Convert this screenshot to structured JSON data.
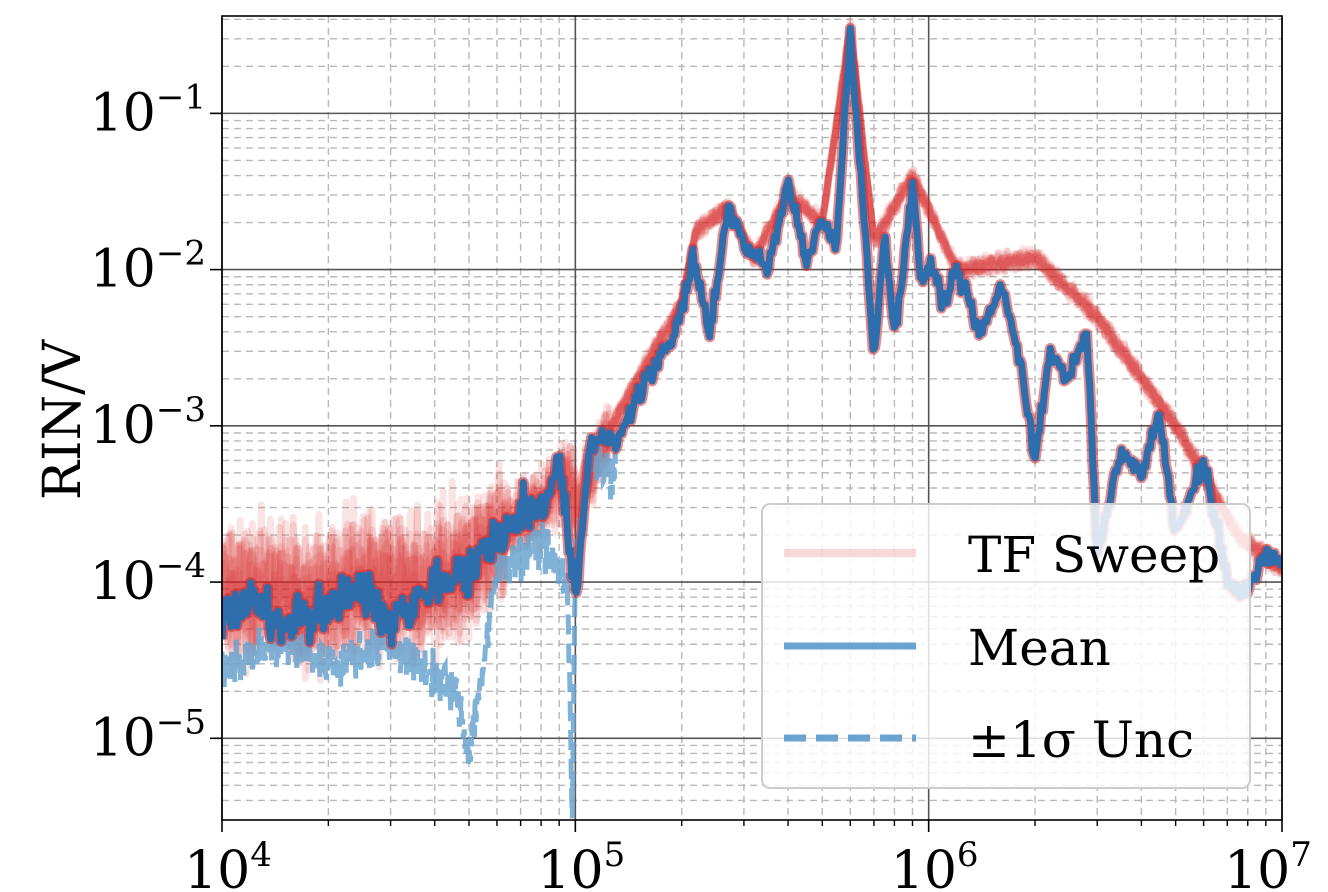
{
  "chart_data": {
    "type": "line",
    "title": "",
    "xlabel": "",
    "ylabel": "RIN/V",
    "x_scale": "log",
    "y_scale": "log",
    "xlim": [
      10000,
      10000000
    ],
    "ylim": [
      3e-06,
      0.42
    ],
    "grid": "major and minor",
    "legend_placement": "lower right",
    "x_ticks": [
      {
        "value": 10000,
        "base": "10",
        "exp": "4"
      },
      {
        "value": 100000,
        "base": "10",
        "exp": "5"
      },
      {
        "value": 1000000,
        "base": "10",
        "exp": "6"
      },
      {
        "value": 10000000,
        "base": "10",
        "exp": "7"
      }
    ],
    "y_ticks": [
      {
        "value": 1e-05,
        "base": "10",
        "exp": "−5"
      },
      {
        "value": 0.0001,
        "base": "10",
        "exp": "−4"
      },
      {
        "value": 0.001,
        "base": "10",
        "exp": "−3"
      },
      {
        "value": 0.01,
        "base": "10",
        "exp": "−2"
      },
      {
        "value": 0.1,
        "base": "10",
        "exp": "−1"
      }
    ],
    "colors": {
      "tf_sweep": "#d62728",
      "mean": "#2f6ead",
      "unc": "#6aa3cf"
    },
    "series": [
      {
        "name": "TF Sweep",
        "style": "many semi-transparent red traces",
        "x": [
          10000,
          13000,
          18000,
          25000,
          35000,
          50000,
          60000,
          80000,
          95000,
          100000,
          120000,
          150000,
          200000,
          220000,
          270000,
          320000,
          400000,
          500000,
          600000,
          700000,
          900000,
          1200000,
          2000000,
          3000000,
          5000000,
          7500000,
          10000000
        ],
        "values": [
          8e-05,
          9e-05,
          8e-05,
          0.0001,
          9e-05,
          0.00012,
          0.0002,
          0.0003,
          0.0005,
          0.0003,
          0.0008,
          0.002,
          0.006,
          0.018,
          0.025,
          0.012,
          0.03,
          0.02,
          0.35,
          0.015,
          0.04,
          0.01,
          0.012,
          0.005,
          0.001,
          0.0002,
          0.00012
        ]
      },
      {
        "name": "Mean",
        "x": [
          10000,
          12000,
          15000,
          20000,
          25000,
          30000,
          40000,
          50000,
          60000,
          70000,
          80000,
          90000,
          100000,
          110000,
          120000,
          130000,
          150000,
          170000,
          200000,
          215000,
          240000,
          270000,
          300000,
          350000,
          400000,
          450000,
          500000,
          550000,
          600000,
          650000,
          700000,
          750000,
          800000,
          850000,
          900000,
          950000,
          1000000,
          1100000,
          1200000,
          1400000,
          1600000,
          1800000,
          2000000,
          2200000,
          2500000,
          2800000,
          3000000,
          3500000,
          4000000,
          4500000,
          5000000,
          6000000,
          7000000,
          8000000,
          9000000,
          10000000
        ],
        "values": [
          6e-05,
          8e-05,
          5e-05,
          7e-05,
          9e-05,
          6e-05,
          0.0001,
          0.00012,
          0.0002,
          0.00028,
          0.0003,
          0.0006,
          7e-05,
          0.0007,
          0.0009,
          0.0008,
          0.0015,
          0.0025,
          0.005,
          0.012,
          0.004,
          0.025,
          0.015,
          0.01,
          0.035,
          0.012,
          0.02,
          0.015,
          0.35,
          0.03,
          0.0025,
          0.018,
          0.004,
          0.01,
          0.04,
          0.008,
          0.012,
          0.006,
          0.01,
          0.004,
          0.008,
          0.003,
          0.0006,
          0.003,
          0.002,
          0.004,
          0.00015,
          0.0007,
          0.0005,
          0.0012,
          0.0002,
          0.0006,
          0.0001,
          9e-05,
          0.00015,
          0.00013
        ]
      },
      {
        "name": "±1σ Unc",
        "style": "dashed",
        "x": [
          10000,
          15000,
          20000,
          30000,
          40000,
          46000,
          48000,
          50000,
          55000,
          60000,
          80000,
          95000,
          98000,
          100000,
          110000,
          130000
        ],
        "values": [
          3e-05,
          4e-05,
          3e-05,
          4e-05,
          2.5e-05,
          2e-05,
          1.2e-05,
          8e-06,
          3e-05,
          0.00012,
          0.00018,
          0.0001,
          3e-06,
          0.00015,
          0.0006,
          0.0005
        ]
      }
    ]
  }
}
